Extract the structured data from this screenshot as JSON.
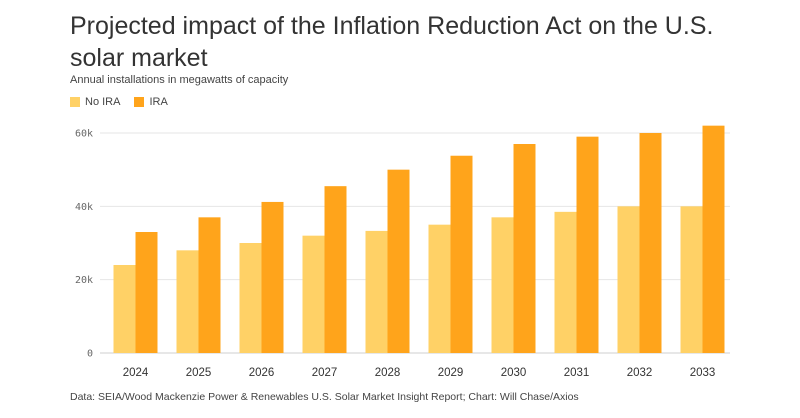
{
  "chart_data": {
    "type": "bar",
    "title": "Projected impact of the Inflation Reduction Act on the U.S. solar market",
    "subtitle": "Annual installations in megawatts of capacity",
    "categories": [
      "2024",
      "2025",
      "2026",
      "2027",
      "2028",
      "2029",
      "2030",
      "2031",
      "2032",
      "2033"
    ],
    "series": [
      {
        "name": "No IRA",
        "color": "#ffd166",
        "values": [
          24000,
          28000,
          30000,
          32000,
          33300,
          35000,
          37000,
          38500,
          40000,
          40000
        ]
      },
      {
        "name": "IRA",
        "color": "#ffa41b",
        "values": [
          33000,
          37000,
          41200,
          45500,
          50000,
          53800,
          57000,
          59000,
          60000,
          62000
        ]
      }
    ],
    "yticks": [
      {
        "value": 0,
        "label": "0"
      },
      {
        "value": 20000,
        "label": "20k"
      },
      {
        "value": 40000,
        "label": "40k"
      },
      {
        "value": 60000,
        "label": "60k"
      }
    ],
    "ylim": [
      0,
      60000
    ],
    "grid": true,
    "legend_position": "top-left",
    "source": "Data: SEIA/Wood Mackenzie Power & Renewables U.S. Solar Market Insight Report; Chart: Will Chase/Axios"
  }
}
